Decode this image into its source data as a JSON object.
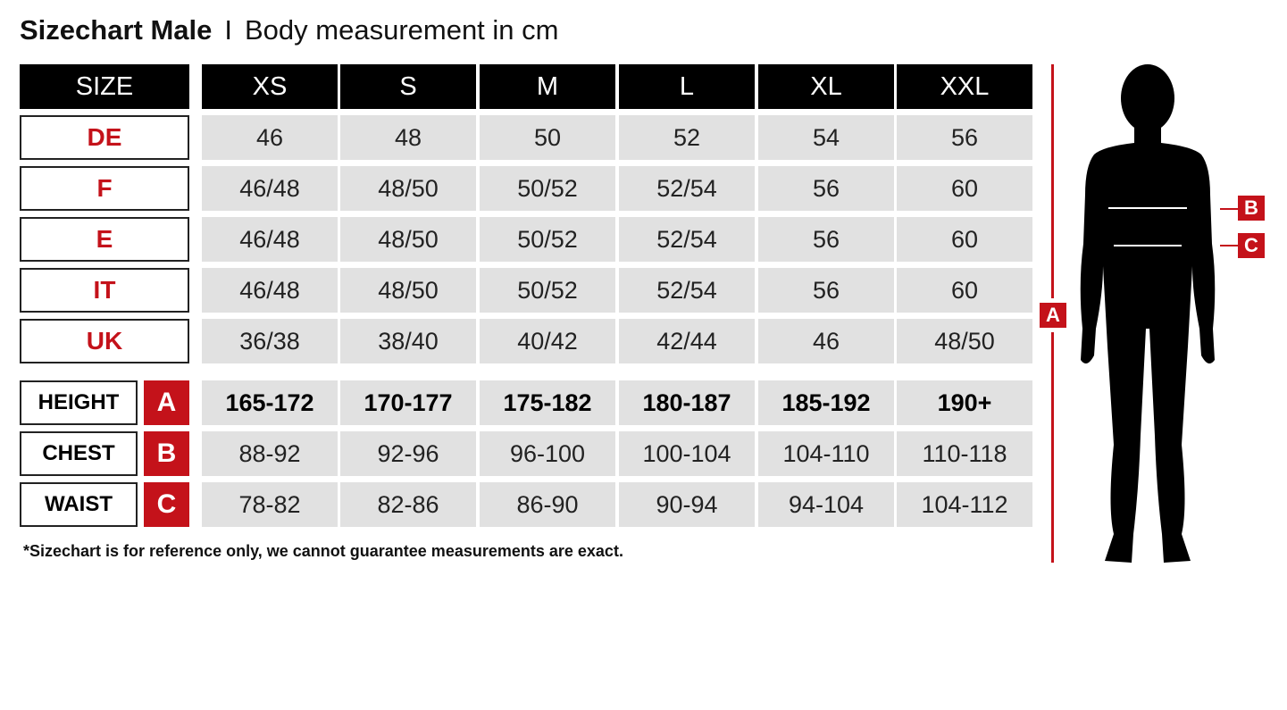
{
  "title": {
    "bold": "Sizechart Male",
    "separator": "I",
    "subtitle": "Body measurement in cm"
  },
  "header": {
    "size_label": "SIZE",
    "sizes": [
      "XS",
      "S",
      "M",
      "L",
      "XL",
      "XXL"
    ]
  },
  "conversion_rows": [
    {
      "label": "DE",
      "values": [
        "46",
        "48",
        "50",
        "52",
        "54",
        "56"
      ]
    },
    {
      "label": "F",
      "values": [
        "46/48",
        "48/50",
        "50/52",
        "52/54",
        "56",
        "60"
      ]
    },
    {
      "label": "E",
      "values": [
        "46/48",
        "48/50",
        "50/52",
        "52/54",
        "56",
        "60"
      ]
    },
    {
      "label": "IT",
      "values": [
        "46/48",
        "48/50",
        "50/52",
        "52/54",
        "56",
        "60"
      ]
    },
    {
      "label": "UK",
      "values": [
        "36/38",
        "38/40",
        "40/42",
        "42/44",
        "46",
        "48/50"
      ]
    }
  ],
  "measurement_rows": [
    {
      "label": "HEIGHT",
      "letter": "A",
      "values": [
        "165-172",
        "170-177",
        "175-182",
        "180-187",
        "185-192",
        "190+"
      ]
    },
    {
      "label": "CHEST",
      "letter": "B",
      "values": [
        "88-92",
        "92-96",
        "96-100",
        "100-104",
        "104-110",
        "110-118"
      ]
    },
    {
      "label": "WAIST",
      "letter": "C",
      "values": [
        "78-82",
        "82-86",
        "86-90",
        "90-94",
        "94-104",
        "104-112"
      ]
    }
  ],
  "note": "*Sizechart is for reference only, we cannot guarantee measurements are exact.",
  "figure": {
    "height_tag": "A",
    "chest_tag": "B",
    "waist_tag": "C"
  },
  "colors": {
    "accent": "#c4121a",
    "header_bg": "#000000",
    "cell_bg": "#e1e1e1"
  }
}
